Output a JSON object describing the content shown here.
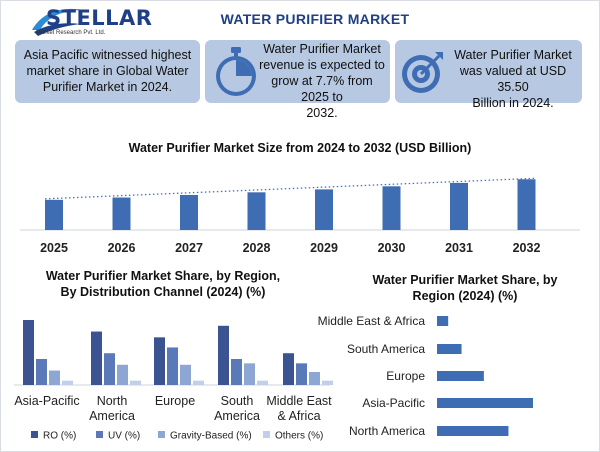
{
  "header": {
    "brand": "STELLAR",
    "brand_sub": "Market Research Pvt. Ltd.",
    "title": "WATER PURIFIER MARKET"
  },
  "info_boxes": [
    {
      "text": "Asia Pacific witnessed highest market share in Global Water Purifier Market in 2024.",
      "lines": [
        "Asia Pacific witnessed highest",
        "market share in Global Water",
        "Purifier Market in 2024."
      ]
    },
    {
      "text": "Water Purifier Market revenue is expected to grow at 7.7% from 2025 to 2032.",
      "icon": "stopwatch-icon",
      "lines": [
        "Water Purifier Market",
        "revenue is expected to",
        "grow at 7.7% from 2025 to",
        "2032."
      ]
    },
    {
      "text": "Water Purifier Market was valued at USD 35.50 Billion in 2024.",
      "icon": "target-icon",
      "lines": [
        "Water Purifier Market",
        "was valued at USD 35.50",
        "Billion in 2024."
      ]
    }
  ],
  "colors": {
    "brand": "#1f3f86",
    "box_bg": "#b7c8e2",
    "bar_blue": "#3f6db3",
    "ro": "#3b5491",
    "uv": "#5a79b8",
    "gravity": "#8ea6d4",
    "others": "#c2cfe8"
  },
  "chart_data": [
    {
      "type": "bar",
      "title": "Water Purifier Market Size from 2024 to 2032 (USD Billion)",
      "categories": [
        "2025",
        "2026",
        "2027",
        "2028",
        "2029",
        "2030",
        "2031",
        "2032"
      ],
      "values": [
        38.2,
        41.1,
        44.3,
        47.7,
        51.4,
        55.3,
        59.6,
        64.2
      ],
      "ylim": [
        0,
        70
      ],
      "trendline": "dotted"
    },
    {
      "type": "bar",
      "title": "Water Purifier Market Share, by Region, By Distribution Channel (2024) (%)",
      "categories": [
        "Asia-Pacific",
        "North America",
        "Europe",
        "South America",
        "Middle East & Africa"
      ],
      "series": [
        {
          "name": "RO (%)",
          "values": [
            45,
            37,
            33,
            41,
            22
          ]
        },
        {
          "name": "UV (%)",
          "values": [
            18,
            22,
            26,
            18,
            15
          ]
        },
        {
          "name": "Gravity-Based (%)",
          "values": [
            10,
            14,
            14,
            15,
            9
          ]
        },
        {
          "name": "Others (%)",
          "values": [
            3,
            3,
            3,
            3,
            3
          ]
        }
      ],
      "ylim": [
        0,
        50
      ],
      "legend": "bottom"
    },
    {
      "type": "bar",
      "orientation": "horizontal",
      "title": "Water Purifier Market Share, by Region (2024) (%)",
      "categories": [
        "Middle East & Africa",
        "South America",
        "Europe",
        "Asia-Pacific",
        "North America"
      ],
      "values": [
        5,
        11,
        21,
        43,
        32
      ],
      "xlim": [
        0,
        50
      ]
    }
  ]
}
